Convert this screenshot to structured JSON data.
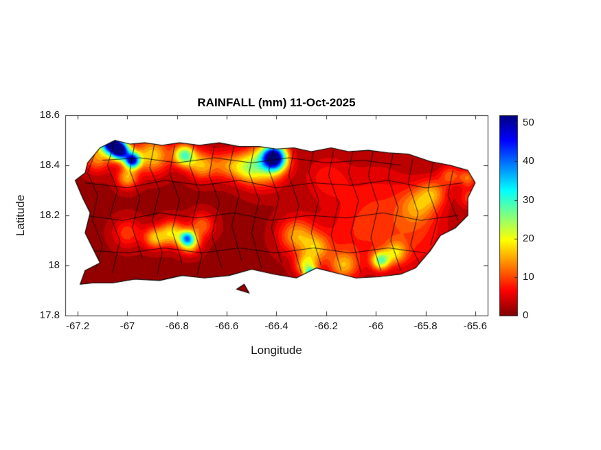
{
  "chart_data": {
    "type": "heatmap",
    "plot_style": "filled-contour-map",
    "title": "RAINFALL (mm) 11-Oct-2025",
    "xlabel": "Longitude",
    "ylabel": "Latitude",
    "xlim": [
      -67.25,
      -65.55
    ],
    "ylim": [
      17.8,
      18.6
    ],
    "xticks": [
      -67.2,
      -67,
      -66.8,
      -66.6,
      -66.4,
      -66.2,
      -66,
      -65.8,
      -65.6
    ],
    "xtick_labels": [
      "-67.2",
      "-67",
      "-66.8",
      "-66.6",
      "-66.4",
      "-66.2",
      "-66",
      "-65.8",
      "-65.6"
    ],
    "yticks": [
      17.8,
      18,
      18.2,
      18.4,
      18.6
    ],
    "ytick_labels": [
      "17.8",
      "18",
      "18.2",
      "18.4",
      "18.6"
    ],
    "grid": false,
    "colorbar": {
      "min": 0,
      "max": 52,
      "ticks": [
        0,
        10,
        20,
        30,
        40,
        50
      ],
      "tick_labels": [
        "0",
        "10",
        "20",
        "30",
        "40",
        "50"
      ],
      "colormap": "jet-reversed",
      "stops": [
        {
          "t": 0.0,
          "color": "#800000"
        },
        {
          "t": 0.125,
          "color": "#ff0000"
        },
        {
          "t": 0.375,
          "color": "#ffff00"
        },
        {
          "t": 0.625,
          "color": "#00ffff"
        },
        {
          "t": 0.875,
          "color": "#0000ff"
        },
        {
          "t": 1.0,
          "color": "#000080"
        }
      ]
    },
    "colors": {
      "land_base": "#8b0000",
      "boundary_line": "#000000",
      "axis_frame": "#262626",
      "background": "#ffffff"
    },
    "base_rainfall_mm": 1.5,
    "rain_cells": [
      {
        "lon": -67.07,
        "lat": 18.49,
        "peak_mm": 46,
        "sigma_deg": 0.028
      },
      {
        "lon": -67.03,
        "lat": 18.46,
        "peak_mm": 52,
        "sigma_deg": 0.026
      },
      {
        "lon": -66.98,
        "lat": 18.42,
        "peak_mm": 44,
        "sigma_deg": 0.022
      },
      {
        "lon": -67.12,
        "lat": 18.43,
        "peak_mm": 12,
        "sigma_deg": 0.04
      },
      {
        "lon": -67.0,
        "lat": 18.35,
        "peak_mm": 14,
        "sigma_deg": 0.03
      },
      {
        "lon": -66.9,
        "lat": 18.44,
        "peak_mm": 16,
        "sigma_deg": 0.05
      },
      {
        "lon": -66.77,
        "lat": 18.44,
        "peak_mm": 26,
        "sigma_deg": 0.03
      },
      {
        "lon": -66.7,
        "lat": 18.4,
        "peak_mm": 14,
        "sigma_deg": 0.04
      },
      {
        "lon": -66.6,
        "lat": 18.4,
        "peak_mm": 10,
        "sigma_deg": 0.04
      },
      {
        "lon": -66.52,
        "lat": 18.39,
        "peak_mm": 13,
        "sigma_deg": 0.04
      },
      {
        "lon": -66.41,
        "lat": 18.43,
        "peak_mm": 50,
        "sigma_deg": 0.034
      },
      {
        "lon": -66.45,
        "lat": 18.4,
        "peak_mm": 16,
        "sigma_deg": 0.06
      },
      {
        "lon": -66.2,
        "lat": 18.35,
        "peak_mm": 5,
        "sigma_deg": 0.06
      },
      {
        "lon": -67.0,
        "lat": 18.13,
        "peak_mm": 8,
        "sigma_deg": 0.04
      },
      {
        "lon": -66.89,
        "lat": 18.11,
        "peak_mm": 14,
        "sigma_deg": 0.03
      },
      {
        "lon": -66.82,
        "lat": 18.13,
        "peak_mm": 16,
        "sigma_deg": 0.035
      },
      {
        "lon": -66.76,
        "lat": 18.11,
        "peak_mm": 22,
        "sigma_deg": 0.02
      },
      {
        "lon": -66.75,
        "lat": 18.09,
        "peak_mm": 18,
        "sigma_deg": 0.03
      },
      {
        "lon": -66.7,
        "lat": 18.16,
        "peak_mm": 10,
        "sigma_deg": 0.035
      },
      {
        "lon": -66.32,
        "lat": 18.12,
        "peak_mm": 13,
        "sigma_deg": 0.05
      },
      {
        "lon": -66.24,
        "lat": 18.07,
        "peak_mm": 12,
        "sigma_deg": 0.04
      },
      {
        "lon": -66.28,
        "lat": 18.0,
        "peak_mm": 16,
        "sigma_deg": 0.03
      },
      {
        "lon": -66.26,
        "lat": 17.965,
        "peak_mm": 26,
        "sigma_deg": 0.018
      },
      {
        "lon": -66.13,
        "lat": 18.0,
        "peak_mm": 12,
        "sigma_deg": 0.04
      },
      {
        "lon": -65.98,
        "lat": 18.02,
        "peak_mm": 22,
        "sigma_deg": 0.025
      },
      {
        "lon": -65.92,
        "lat": 18.05,
        "peak_mm": 12,
        "sigma_deg": 0.03
      },
      {
        "lon": -65.83,
        "lat": 18.24,
        "peak_mm": 9,
        "sigma_deg": 0.05
      },
      {
        "lon": -65.77,
        "lat": 18.29,
        "peak_mm": 10,
        "sigma_deg": 0.04
      },
      {
        "lon": -65.7,
        "lat": 18.36,
        "peak_mm": 9,
        "sigma_deg": 0.03
      },
      {
        "lon": -65.63,
        "lat": 18.35,
        "peak_mm": 10,
        "sigma_deg": 0.025
      },
      {
        "lon": -65.62,
        "lat": 18.27,
        "peak_mm": 8,
        "sigma_deg": 0.03
      },
      {
        "lon": -66.0,
        "lat": 18.25,
        "peak_mm": 5,
        "sigma_deg": 0.12
      },
      {
        "lon": -65.85,
        "lat": 18.12,
        "peak_mm": 6,
        "sigma_deg": 0.1
      },
      {
        "lon": -66.1,
        "lat": 18.1,
        "peak_mm": 4,
        "sigma_deg": 0.1
      }
    ],
    "island_outline": [
      [
        -67.16,
        18.41
      ],
      [
        -67.11,
        18.47
      ],
      [
        -67.05,
        18.5
      ],
      [
        -66.99,
        18.485
      ],
      [
        -66.93,
        18.49
      ],
      [
        -66.86,
        18.48
      ],
      [
        -66.79,
        18.49
      ],
      [
        -66.71,
        18.48
      ],
      [
        -66.63,
        18.49
      ],
      [
        -66.55,
        18.475
      ],
      [
        -66.47,
        18.475
      ],
      [
        -66.4,
        18.465
      ],
      [
        -66.33,
        18.47
      ],
      [
        -66.26,
        18.455
      ],
      [
        -66.18,
        18.47
      ],
      [
        -66.11,
        18.455
      ],
      [
        -66.03,
        18.46
      ],
      [
        -65.95,
        18.45
      ],
      [
        -65.87,
        18.445
      ],
      [
        -65.78,
        18.415
      ],
      [
        -65.7,
        18.4
      ],
      [
        -65.63,
        18.38
      ],
      [
        -65.6,
        18.33
      ],
      [
        -65.63,
        18.27
      ],
      [
        -65.63,
        18.2
      ],
      [
        -65.68,
        18.15
      ],
      [
        -65.74,
        18.12
      ],
      [
        -65.78,
        18.06
      ],
      [
        -65.84,
        17.99
      ],
      [
        -65.9,
        17.965
      ],
      [
        -65.99,
        17.955
      ],
      [
        -66.08,
        17.95
      ],
      [
        -66.16,
        17.97
      ],
      [
        -66.24,
        17.99
      ],
      [
        -66.32,
        17.95
      ],
      [
        -66.41,
        17.965
      ],
      [
        -66.5,
        17.985
      ],
      [
        -66.59,
        17.96
      ],
      [
        -66.69,
        17.95
      ],
      [
        -66.78,
        17.96
      ],
      [
        -66.87,
        17.94
      ],
      [
        -66.97,
        17.945
      ],
      [
        -67.06,
        17.93
      ],
      [
        -67.14,
        17.93
      ],
      [
        -67.19,
        17.925
      ],
      [
        -67.17,
        17.98
      ],
      [
        -67.11,
        18.01
      ],
      [
        -67.14,
        18.07
      ],
      [
        -67.17,
        18.13
      ],
      [
        -67.15,
        18.21
      ],
      [
        -67.18,
        18.27
      ],
      [
        -67.21,
        18.34
      ],
      [
        -67.17,
        18.37
      ]
    ],
    "islets": [
      [
        [
          -66.56,
          17.905
        ],
        [
          -66.51,
          17.89
        ],
        [
          -66.53,
          17.925
        ]
      ]
    ],
    "municipal_boundaries": [
      [
        [
          -67.13,
          18.45
        ],
        [
          -67.16,
          18.37
        ],
        [
          -67.12,
          18.28
        ],
        [
          -67.14,
          18.18
        ],
        [
          -67.1,
          18.08
        ],
        [
          -67.13,
          17.98
        ]
      ],
      [
        [
          -67.05,
          18.5
        ],
        [
          -67.08,
          18.4
        ],
        [
          -67.04,
          18.3
        ],
        [
          -67.07,
          18.2
        ],
        [
          -67.03,
          18.1
        ],
        [
          -67.06,
          17.97
        ]
      ],
      [
        [
          -66.97,
          18.49
        ],
        [
          -66.99,
          18.38
        ],
        [
          -66.95,
          18.27
        ],
        [
          -66.98,
          18.15
        ],
        [
          -66.94,
          18.03
        ]
      ],
      [
        [
          -66.89,
          18.49
        ],
        [
          -66.91,
          18.39
        ],
        [
          -66.87,
          18.3
        ],
        [
          -66.9,
          18.18
        ],
        [
          -66.86,
          18.05
        ],
        [
          -66.88,
          17.96
        ]
      ],
      [
        [
          -66.81,
          18.48
        ],
        [
          -66.83,
          18.37
        ],
        [
          -66.79,
          18.26
        ],
        [
          -66.82,
          18.14
        ],
        [
          -66.78,
          18.01
        ]
      ],
      [
        [
          -66.73,
          18.49
        ],
        [
          -66.75,
          18.4
        ],
        [
          -66.71,
          18.29
        ],
        [
          -66.74,
          18.17
        ],
        [
          -66.7,
          18.04
        ],
        [
          -66.72,
          17.96
        ]
      ],
      [
        [
          -66.65,
          18.48
        ],
        [
          -66.67,
          18.36
        ],
        [
          -66.63,
          18.25
        ],
        [
          -66.66,
          18.12
        ],
        [
          -66.62,
          17.99
        ]
      ],
      [
        [
          -66.57,
          18.48
        ],
        [
          -66.59,
          18.39
        ],
        [
          -66.55,
          18.28
        ],
        [
          -66.58,
          18.16
        ],
        [
          -66.54,
          18.02
        ]
      ],
      [
        [
          -66.49,
          18.47
        ],
        [
          -66.51,
          18.37
        ],
        [
          -66.47,
          18.26
        ],
        [
          -66.5,
          18.13
        ],
        [
          -66.46,
          17.99
        ]
      ],
      [
        [
          -66.41,
          18.47
        ],
        [
          -66.43,
          18.38
        ],
        [
          -66.39,
          18.27
        ],
        [
          -66.42,
          18.15
        ],
        [
          -66.38,
          18.01
        ]
      ],
      [
        [
          -66.33,
          18.46
        ],
        [
          -66.35,
          18.36
        ],
        [
          -66.31,
          18.24
        ],
        [
          -66.34,
          18.11
        ],
        [
          -66.3,
          17.97
        ]
      ],
      [
        [
          -66.25,
          18.46
        ],
        [
          -66.27,
          18.37
        ],
        [
          -66.23,
          18.26
        ],
        [
          -66.26,
          18.13
        ],
        [
          -66.22,
          18.0
        ]
      ],
      [
        [
          -66.17,
          18.46
        ],
        [
          -66.19,
          18.36
        ],
        [
          -66.15,
          18.25
        ],
        [
          -66.18,
          18.12
        ],
        [
          -66.14,
          17.98
        ]
      ],
      [
        [
          -66.09,
          18.47
        ],
        [
          -66.11,
          18.37
        ],
        [
          -66.07,
          18.26
        ],
        [
          -66.1,
          18.13
        ],
        [
          -66.06,
          17.97
        ]
      ],
      [
        [
          -66.01,
          18.46
        ],
        [
          -66.03,
          18.36
        ],
        [
          -65.99,
          18.24
        ],
        [
          -66.02,
          18.11
        ],
        [
          -65.98,
          17.98
        ]
      ],
      [
        [
          -65.93,
          18.45
        ],
        [
          -65.95,
          18.35
        ],
        [
          -65.91,
          18.23
        ],
        [
          -65.94,
          18.1
        ],
        [
          -65.9,
          17.98
        ]
      ],
      [
        [
          -65.85,
          18.43
        ],
        [
          -65.87,
          18.33
        ],
        [
          -65.83,
          18.21
        ],
        [
          -65.86,
          18.08
        ],
        [
          -65.82,
          18.0
        ]
      ],
      [
        [
          -65.77,
          18.41
        ],
        [
          -65.79,
          18.3
        ],
        [
          -65.75,
          18.19
        ],
        [
          -65.78,
          18.08
        ]
      ],
      [
        [
          -65.69,
          18.38
        ],
        [
          -65.71,
          18.28
        ],
        [
          -65.67,
          18.18
        ]
      ],
      [
        [
          -67.17,
          18.33
        ],
        [
          -67.0,
          18.31
        ],
        [
          -66.85,
          18.34
        ],
        [
          -66.7,
          18.32
        ],
        [
          -66.55,
          18.34
        ],
        [
          -66.4,
          18.31
        ],
        [
          -66.25,
          18.33
        ],
        [
          -66.1,
          18.32
        ],
        [
          -65.95,
          18.34
        ],
        [
          -65.8,
          18.31
        ],
        [
          -65.65,
          18.33
        ]
      ],
      [
        [
          -67.17,
          18.2
        ],
        [
          -67.02,
          18.18
        ],
        [
          -66.87,
          18.21
        ],
        [
          -66.72,
          18.19
        ],
        [
          -66.57,
          18.21
        ],
        [
          -66.42,
          18.18
        ],
        [
          -66.27,
          18.2
        ],
        [
          -66.12,
          18.19
        ],
        [
          -65.97,
          18.21
        ],
        [
          -65.82,
          18.18
        ],
        [
          -65.67,
          18.2
        ]
      ],
      [
        [
          -67.15,
          18.06
        ],
        [
          -67.0,
          18.05
        ],
        [
          -66.85,
          18.07
        ],
        [
          -66.7,
          18.05
        ],
        [
          -66.55,
          18.07
        ],
        [
          -66.4,
          18.05
        ],
        [
          -66.25,
          18.07
        ],
        [
          -66.1,
          18.05
        ],
        [
          -65.95,
          18.07
        ],
        [
          -65.8,
          18.05
        ]
      ],
      [
        [
          -67.1,
          18.42
        ],
        [
          -66.95,
          18.43
        ],
        [
          -66.8,
          18.41
        ],
        [
          -66.65,
          18.43
        ],
        [
          -66.5,
          18.41
        ],
        [
          -66.35,
          18.43
        ],
        [
          -66.2,
          18.41
        ],
        [
          -66.05,
          18.42
        ],
        [
          -65.9,
          18.4
        ]
      ]
    ]
  }
}
